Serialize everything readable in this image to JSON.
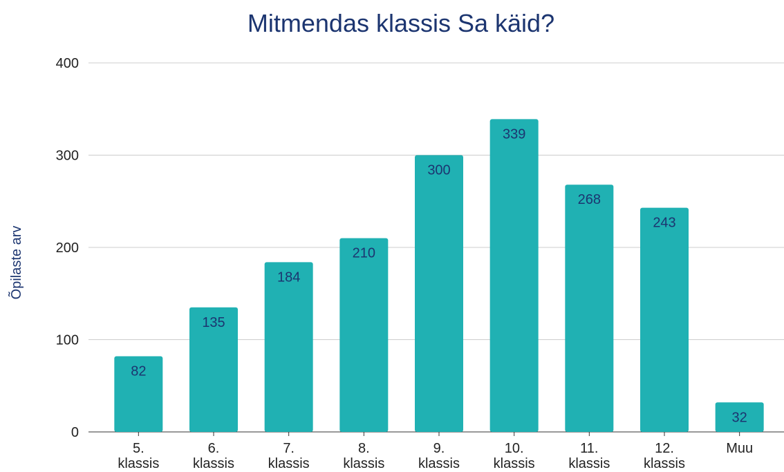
{
  "chart_data": {
    "type": "bar",
    "title": "Mitmendas klassis Sa käid?",
    "ylabel": "Õpilaste arv",
    "categories": [
      "5. klassis",
      "6. klassis",
      "7. klassis",
      "8. klassis",
      "9. klassis",
      "10. klassis",
      "11. klassis",
      "12. klassis",
      "Muu"
    ],
    "values": [
      82,
      135,
      184,
      210,
      300,
      339,
      268,
      243,
      32
    ],
    "color": "#20b1b3",
    "ylim": [
      0,
      400
    ],
    "yticks": [
      0,
      100,
      200,
      300,
      400
    ],
    "grid": true
  }
}
